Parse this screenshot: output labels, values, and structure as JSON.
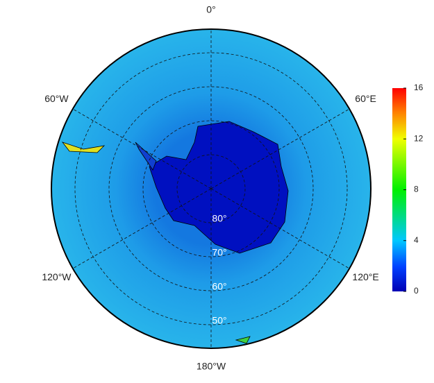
{
  "map": {
    "lon_labels": [
      {
        "value": 0,
        "label": "0°"
      },
      {
        "value": 60,
        "label": "60°E"
      },
      {
        "value": 120,
        "label": "120°E"
      },
      {
        "value": 180,
        "label": "180°W"
      },
      {
        "value": -120,
        "label": "120°W"
      },
      {
        "value": -60,
        "label": "60°W"
      }
    ],
    "lat_labels": [
      {
        "value": 80,
        "label": "80°"
      },
      {
        "value": 70,
        "label": "70°"
      },
      {
        "value": 60,
        "label": "60°"
      },
      {
        "value": 50,
        "label": "50°"
      }
    ],
    "colorbar": {
      "lim": [
        0,
        16
      ],
      "ticks": [
        0,
        4,
        8,
        12,
        16
      ]
    }
  }
}
